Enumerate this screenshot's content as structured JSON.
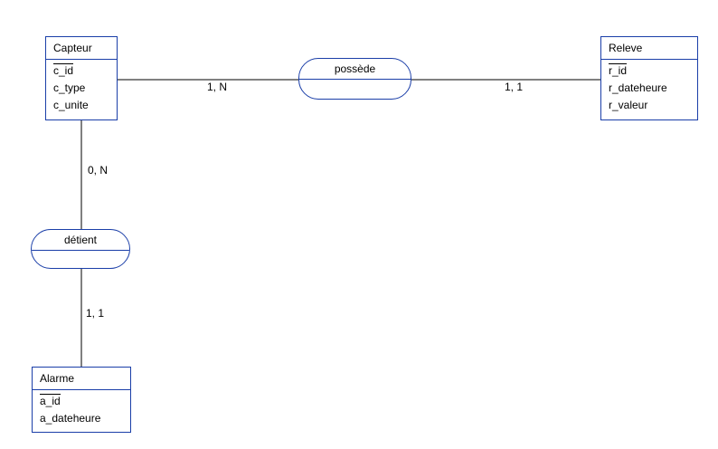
{
  "entities": {
    "capteur": {
      "name": "Capteur",
      "key": "c_id",
      "attrs": [
        "c_type",
        "c_unite"
      ]
    },
    "releve": {
      "name": "Releve",
      "key": "r_id",
      "attrs": [
        "r_dateheure",
        "r_valeur"
      ]
    },
    "alarme": {
      "name": "Alarme",
      "key": "a_id",
      "attrs": [
        "a_dateheure"
      ]
    }
  },
  "relations": {
    "possede": "possède",
    "detient": "détient"
  },
  "cardinalities": {
    "capteur_possede": "1, N",
    "releve_possede": "1, 1",
    "capteur_detient": "0, N",
    "alarme_detient": "1, 1"
  },
  "colors": {
    "entity_border": "#1a3ea8",
    "line": "#000000"
  }
}
